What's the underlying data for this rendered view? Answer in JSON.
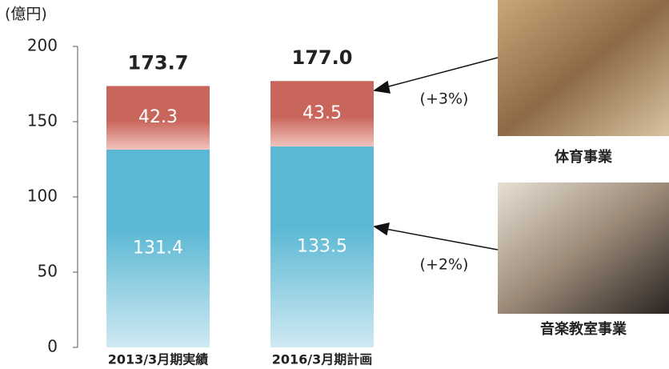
{
  "chart_data": {
    "type": "stacked-bar",
    "y_label": "(億円)",
    "categories": [
      "2013/3月期実績",
      "2016/3月期計画"
    ],
    "series": [
      {
        "name": "音楽教室事業",
        "color": "#5bb8d4",
        "values": [
          131.4,
          133.5
        ]
      },
      {
        "name": "体育事業",
        "color": "#c9665c",
        "values": [
          42.3,
          43.5
        ]
      }
    ],
    "totals": {
      "values": [
        173.7,
        177.0
      ],
      "value_labels": [
        "173.7",
        "177.0"
      ]
    },
    "annotations": [
      "(+2%)",
      "(+3%)"
    ],
    "ylim": [
      0,
      200
    ],
    "yticks": [
      0,
      50,
      100,
      150,
      200
    ],
    "grid": false
  }
}
